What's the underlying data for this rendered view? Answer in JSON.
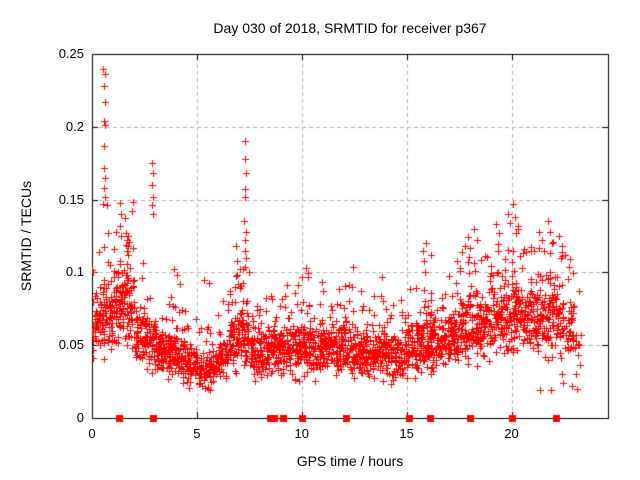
{
  "chart": {
    "title": "Day 030 of 2018, SRMTID for receiver p367",
    "xlabel": "GPS time / hours",
    "ylabel": "SRMTID / TECUs"
  },
  "colors": {
    "marker": "#ff0000",
    "grid": "#b5b5b5",
    "axis": "#000000",
    "background": "#ffffff",
    "text": "#000000"
  },
  "chart_data": {
    "type": "scatter",
    "title": "Day 030 of 2018, SRMTID for receiver p367",
    "xlabel": "GPS time / hours",
    "ylabel": "SRMTID / TECUs",
    "xlim": [
      0,
      24.6
    ],
    "ylim": [
      0,
      0.25
    ],
    "xticks": [
      0,
      5,
      10,
      15,
      20
    ],
    "xtick_labels": [
      "0",
      "5",
      "10",
      "15",
      "20"
    ],
    "yticks": [
      0,
      0.05,
      0.1,
      0.15,
      0.2,
      0.25
    ],
    "ytick_labels": [
      "0",
      "0.05",
      "0.1",
      "0.15",
      "0.2",
      "0.25"
    ],
    "grid": true,
    "legend_position": "none",
    "marker": {
      "shape": "plus",
      "color": "#ff0000",
      "size": 7
    },
    "baseline_marker": {
      "shape": "filled-square",
      "color": "#ff0000",
      "size": 7,
      "y": 0,
      "hours": [
        1.3,
        2.9,
        8.5,
        8.7,
        9.1,
        10.0,
        12.1,
        15.1,
        16.1,
        18.0,
        20.0,
        22.1
      ]
    },
    "outlier_points": [
      [
        0.52,
        0.24
      ],
      [
        0.6,
        0.236
      ],
      [
        0.57,
        0.228
      ],
      [
        0.62,
        0.217
      ],
      [
        0.55,
        0.204
      ],
      [
        0.63,
        0.201
      ],
      [
        0.58,
        0.187
      ],
      [
        0.55,
        0.172
      ],
      [
        0.6,
        0.165
      ],
      [
        0.57,
        0.158
      ],
      [
        0.62,
        0.152
      ],
      [
        0.53,
        0.147
      ],
      [
        0.7,
        0.146
      ],
      [
        1.32,
        0.148
      ],
      [
        1.36,
        0.14
      ],
      [
        1.34,
        0.132
      ],
      [
        1.38,
        0.125
      ],
      [
        1.62,
        0.127
      ],
      [
        1.7,
        0.125
      ],
      [
        1.68,
        0.122
      ],
      [
        1.64,
        0.119
      ],
      [
        1.72,
        0.118
      ],
      [
        1.66,
        0.115
      ],
      [
        1.76,
        0.121
      ],
      [
        1.74,
        0.112
      ],
      [
        2.86,
        0.175
      ],
      [
        2.9,
        0.168
      ],
      [
        2.88,
        0.16
      ],
      [
        2.92,
        0.152
      ],
      [
        2.87,
        0.146
      ],
      [
        2.91,
        0.14
      ],
      [
        3.92,
        0.102
      ],
      [
        4.05,
        0.098
      ],
      [
        4.18,
        0.092
      ],
      [
        5.32,
        0.095
      ],
      [
        5.58,
        0.093
      ],
      [
        6.88,
        0.118
      ],
      [
        6.92,
        0.108
      ],
      [
        6.9,
        0.098
      ],
      [
        6.95,
        0.092
      ],
      [
        7.28,
        0.19
      ],
      [
        7.3,
        0.178
      ],
      [
        7.32,
        0.168
      ],
      [
        7.29,
        0.157
      ],
      [
        7.31,
        0.152
      ],
      [
        7.27,
        0.135
      ],
      [
        7.33,
        0.128
      ],
      [
        7.3,
        0.122
      ],
      [
        7.28,
        0.115
      ],
      [
        7.34,
        0.11
      ],
      [
        7.31,
        0.104
      ],
      [
        10.18,
        0.103
      ],
      [
        10.28,
        0.097
      ],
      [
        12.42,
        0.104
      ],
      [
        13.82,
        0.097
      ],
      [
        15.78,
        0.115
      ],
      [
        15.9,
        0.12
      ],
      [
        15.84,
        0.108
      ],
      [
        16.18,
        0.112
      ],
      [
        17.78,
        0.118
      ],
      [
        17.92,
        0.124
      ],
      [
        18.22,
        0.13
      ],
      [
        18.34,
        0.122
      ],
      [
        19.28,
        0.133
      ],
      [
        19.42,
        0.127
      ],
      [
        19.82,
        0.14
      ],
      [
        19.94,
        0.134
      ],
      [
        20.08,
        0.147
      ],
      [
        20.16,
        0.138
      ],
      [
        20.32,
        0.13
      ],
      [
        21.32,
        0.128
      ],
      [
        21.46,
        0.122
      ],
      [
        21.72,
        0.135
      ],
      [
        21.84,
        0.128
      ],
      [
        21.94,
        0.12
      ],
      [
        22.28,
        0.125
      ],
      [
        22.42,
        0.118
      ],
      [
        21.35,
        0.019
      ],
      [
        21.9,
        0.019
      ],
      [
        22.42,
        0.03
      ],
      [
        22.46,
        0.024
      ],
      [
        22.9,
        0.022
      ],
      [
        23.1,
        0.02
      ]
    ],
    "density_bins": [
      [
        0.0,
        0.5,
        52,
        0.065,
        0.038
      ],
      [
        0.5,
        1.0,
        58,
        0.072,
        0.042
      ],
      [
        1.0,
        1.5,
        58,
        0.078,
        0.045
      ],
      [
        1.5,
        2.0,
        60,
        0.082,
        0.045
      ],
      [
        2.0,
        2.5,
        52,
        0.058,
        0.032
      ],
      [
        2.5,
        3.0,
        50,
        0.052,
        0.028
      ],
      [
        3.0,
        3.5,
        55,
        0.047,
        0.024
      ],
      [
        3.5,
        4.0,
        55,
        0.046,
        0.024
      ],
      [
        4.0,
        4.5,
        50,
        0.043,
        0.022
      ],
      [
        4.5,
        5.0,
        46,
        0.037,
        0.02
      ],
      [
        5.0,
        5.5,
        45,
        0.034,
        0.018
      ],
      [
        5.5,
        6.0,
        46,
        0.034,
        0.018
      ],
      [
        6.0,
        6.5,
        50,
        0.043,
        0.024
      ],
      [
        6.5,
        7.0,
        55,
        0.052,
        0.03
      ],
      [
        7.0,
        7.5,
        58,
        0.058,
        0.034
      ],
      [
        7.5,
        8.0,
        50,
        0.044,
        0.026
      ],
      [
        8.0,
        8.5,
        55,
        0.044,
        0.026
      ],
      [
        8.5,
        9.0,
        56,
        0.048,
        0.026
      ],
      [
        9.0,
        9.5,
        55,
        0.049,
        0.028
      ],
      [
        9.5,
        10.0,
        55,
        0.049,
        0.028
      ],
      [
        10.0,
        10.5,
        56,
        0.053,
        0.03
      ],
      [
        10.5,
        11.0,
        55,
        0.049,
        0.028
      ],
      [
        11.0,
        11.5,
        55,
        0.049,
        0.028
      ],
      [
        11.5,
        12.0,
        55,
        0.047,
        0.027
      ],
      [
        12.0,
        12.5,
        55,
        0.049,
        0.029
      ],
      [
        12.5,
        13.0,
        54,
        0.045,
        0.027
      ],
      [
        13.0,
        13.5,
        54,
        0.045,
        0.027
      ],
      [
        13.5,
        14.0,
        55,
        0.047,
        0.027
      ],
      [
        14.0,
        14.5,
        50,
        0.044,
        0.025
      ],
      [
        14.5,
        15.0,
        50,
        0.044,
        0.025
      ],
      [
        15.0,
        15.5,
        52,
        0.049,
        0.029
      ],
      [
        15.5,
        16.0,
        55,
        0.054,
        0.033
      ],
      [
        16.0,
        16.5,
        55,
        0.053,
        0.03
      ],
      [
        16.5,
        17.0,
        50,
        0.053,
        0.03
      ],
      [
        17.0,
        17.5,
        55,
        0.058,
        0.033
      ],
      [
        17.5,
        18.0,
        55,
        0.062,
        0.034
      ],
      [
        18.0,
        18.5,
        55,
        0.063,
        0.034
      ],
      [
        18.5,
        19.0,
        55,
        0.064,
        0.034
      ],
      [
        19.0,
        19.5,
        55,
        0.068,
        0.035
      ],
      [
        19.5,
        20.0,
        55,
        0.069,
        0.035
      ],
      [
        20.0,
        20.5,
        56,
        0.074,
        0.038
      ],
      [
        20.5,
        21.0,
        54,
        0.069,
        0.035
      ],
      [
        21.0,
        21.5,
        55,
        0.069,
        0.035
      ],
      [
        21.5,
        22.0,
        55,
        0.07,
        0.035
      ],
      [
        22.0,
        22.5,
        50,
        0.068,
        0.036
      ],
      [
        22.5,
        23.0,
        38,
        0.058,
        0.034
      ],
      [
        23.0,
        23.3,
        10,
        0.05,
        0.028
      ]
    ],
    "seed": 20180030
  }
}
